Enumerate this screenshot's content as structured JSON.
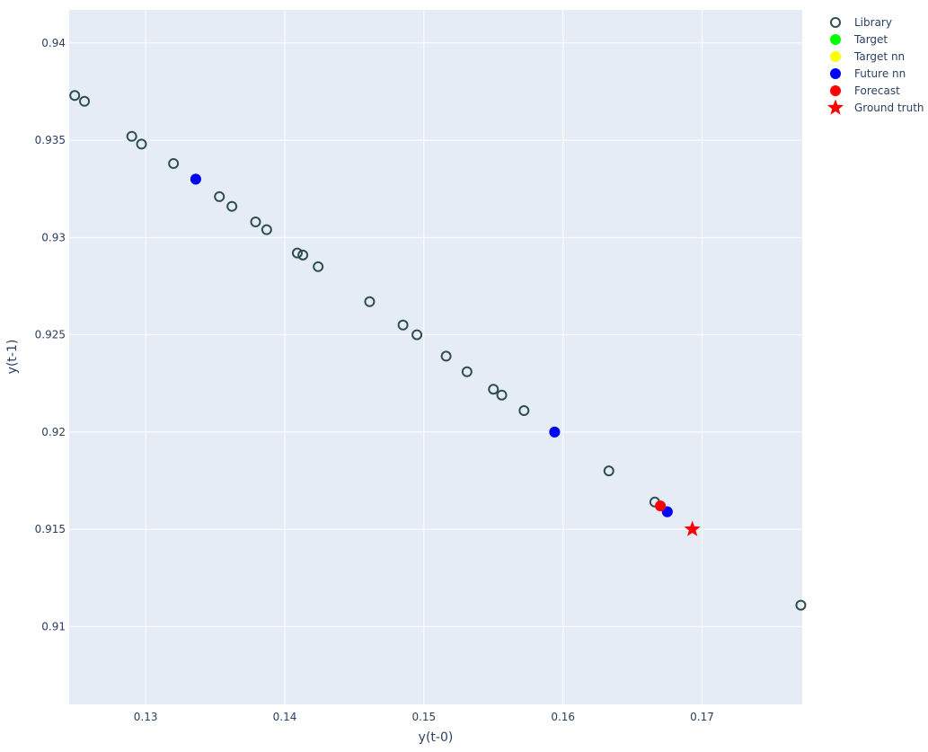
{
  "chart_data": {
    "type": "scatter",
    "title": "",
    "xlabel": "y(t-0)",
    "ylabel": "y(t-1)",
    "xlim": [
      0.1245,
      0.1772
    ],
    "ylim": [
      0.906,
      0.9417
    ],
    "x_ticks": [
      0.13,
      0.14,
      0.15,
      0.16,
      0.17
    ],
    "x_tick_labels": [
      "0.13",
      "0.14",
      "0.15",
      "0.16",
      "0.17"
    ],
    "y_ticks": [
      0.91,
      0.915,
      0.92,
      0.925,
      0.93,
      0.935,
      0.94
    ],
    "y_tick_labels": [
      "0.91",
      "0.915",
      "0.92",
      "0.925",
      "0.93",
      "0.935",
      "0.94"
    ],
    "grid": true,
    "legend_position": "top-right",
    "background_color": "#e5ecf6",
    "series": [
      {
        "name": "Library",
        "marker": "circle-open",
        "color": "#2f4f4f",
        "points": [
          [
            0.1249,
            0.9373
          ],
          [
            0.1256,
            0.937
          ],
          [
            0.129,
            0.9352
          ],
          [
            0.1297,
            0.9348
          ],
          [
            0.132,
            0.9338
          ],
          [
            0.1336,
            0.933
          ],
          [
            0.1353,
            0.9321
          ],
          [
            0.1362,
            0.9316
          ],
          [
            0.1379,
            0.9308
          ],
          [
            0.1387,
            0.9304
          ],
          [
            0.1409,
            0.9292
          ],
          [
            0.1413,
            0.9291
          ],
          [
            0.1424,
            0.9285
          ],
          [
            0.1461,
            0.9267
          ],
          [
            0.1485,
            0.9255
          ],
          [
            0.1495,
            0.925
          ],
          [
            0.1516,
            0.9239
          ],
          [
            0.1531,
            0.9231
          ],
          [
            0.155,
            0.9222
          ],
          [
            0.1556,
            0.9219
          ],
          [
            0.1572,
            0.9211
          ],
          [
            0.1594,
            0.92
          ],
          [
            0.1633,
            0.918
          ],
          [
            0.1666,
            0.9164
          ],
          [
            0.1675,
            0.9159
          ],
          [
            0.1771,
            0.9111
          ]
        ]
      },
      {
        "name": "Target",
        "marker": "circle",
        "color": "#00ff00",
        "points": []
      },
      {
        "name": "Target nn",
        "marker": "circle",
        "color": "#ffff00",
        "points": []
      },
      {
        "name": "Future nn",
        "marker": "circle",
        "color": "#0000ff",
        "points": [
          [
            0.1336,
            0.933
          ],
          [
            0.1594,
            0.92
          ],
          [
            0.1675,
            0.9159
          ]
        ]
      },
      {
        "name": "Forecast",
        "marker": "circle",
        "color": "#ff0000",
        "points": [
          [
            0.167,
            0.9162
          ]
        ]
      },
      {
        "name": "Ground truth",
        "marker": "star",
        "color": "#ff0000",
        "points": [
          [
            0.1693,
            0.915
          ]
        ]
      }
    ]
  }
}
